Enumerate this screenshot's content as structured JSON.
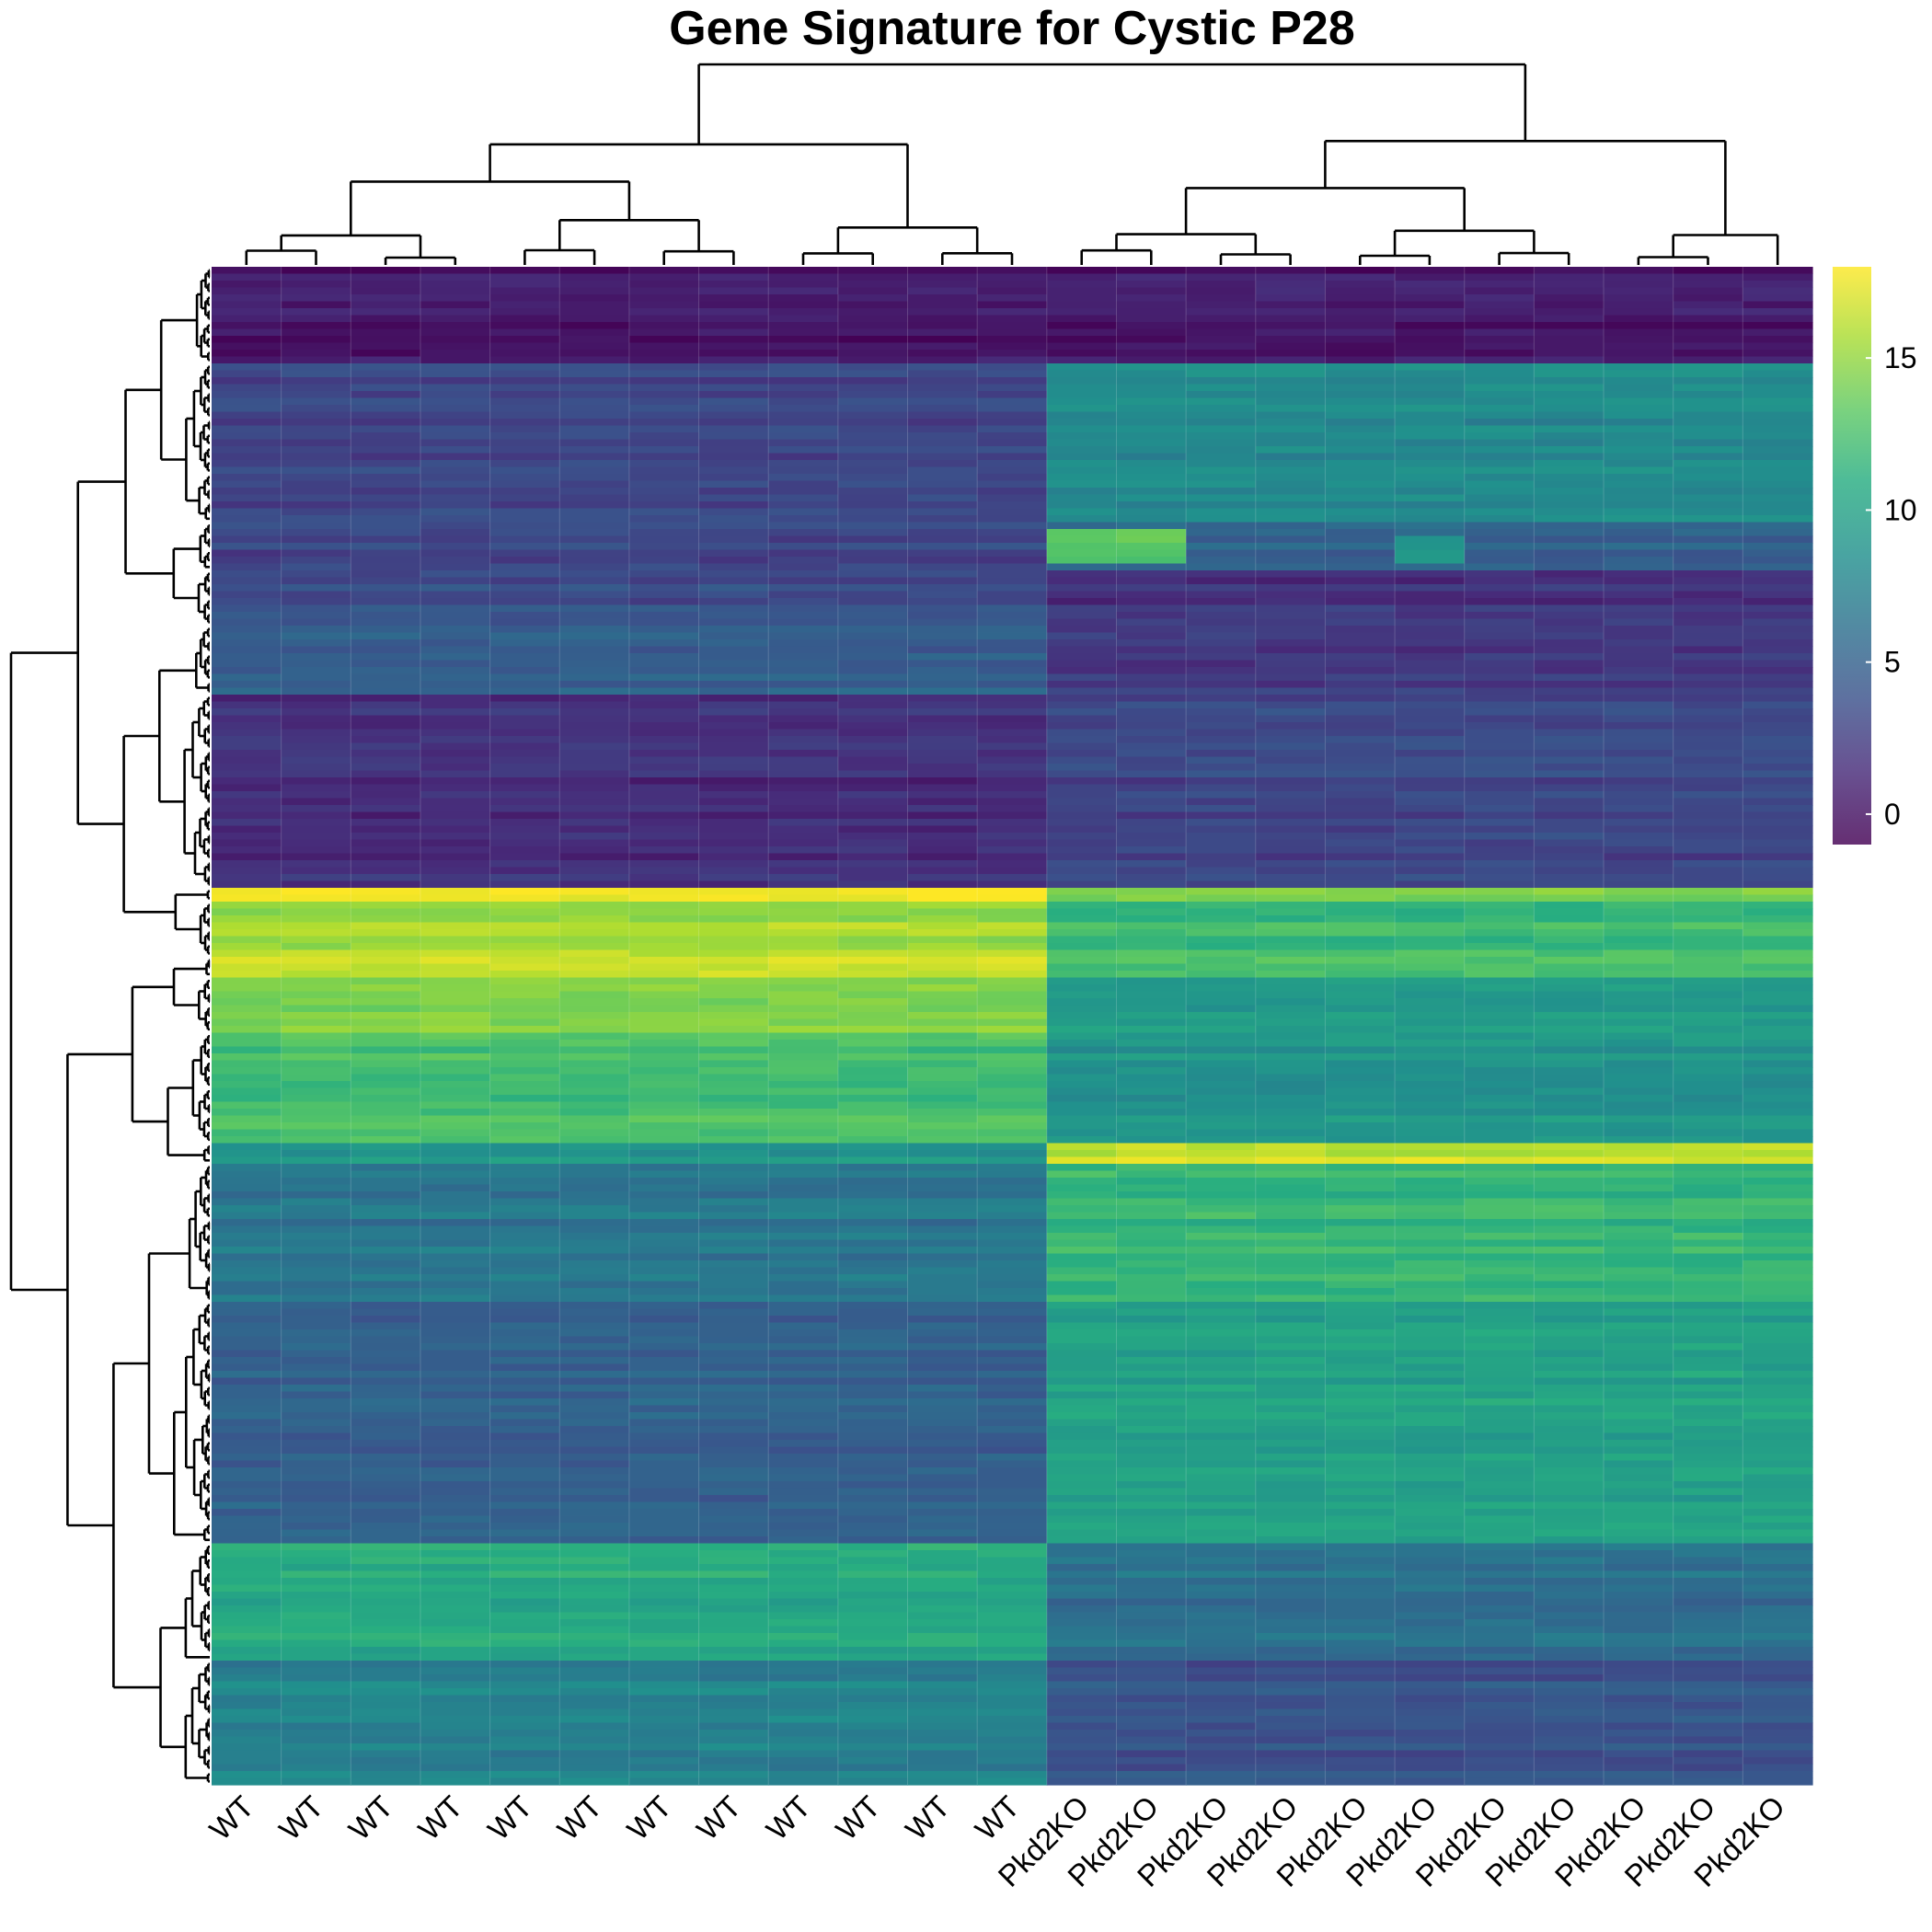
{
  "chart_data": {
    "type": "heatmap",
    "title": "Gene Signature for Cystic P28",
    "columns": [
      "WT",
      "WT",
      "WT",
      "WT",
      "WT",
      "WT",
      "WT",
      "WT",
      "WT",
      "WT",
      "WT",
      "WT",
      "Pkd2KO",
      "Pkd2KO",
      "Pkd2KO",
      "Pkd2KO",
      "Pkd2KO",
      "Pkd2KO",
      "Pkd2KO",
      "Pkd2KO",
      "Pkd2KO",
      "Pkd2KO",
      "Pkd2KO"
    ],
    "row_count": 220,
    "row_dendrogram": true,
    "column_dendrogram": true,
    "colormap": "viridis",
    "colorbar": {
      "min": -1,
      "max": 18,
      "ticks": [
        0,
        5,
        10,
        15
      ]
    },
    "row_blocks": [
      {
        "rows": 14,
        "WT": 0.2,
        "Pkd2KO": 0.3
      },
      {
        "rows": 23,
        "WT": 3.0,
        "Pkd2KO": 8.0
      },
      {
        "rows": 7,
        "WT": 3.0,
        "Pkd2KO": 5.0
      },
      {
        "rows": 8,
        "WT": 3.5,
        "Pkd2KO": 1.8
      },
      {
        "rows": 10,
        "WT": 5.0,
        "Pkd2KO": 2.5
      },
      {
        "rows": 28,
        "WT": 1.5,
        "Pkd2KO": 3.0
      },
      {
        "rows": 2,
        "WT": 17.5,
        "Pkd2KO": 14.0
      },
      {
        "rows": 8,
        "WT": 15.5,
        "Pkd2KO": 12.0
      },
      {
        "rows": 3,
        "WT": 17.0,
        "Pkd2KO": 13.0
      },
      {
        "rows": 8,
        "WT": 14.5,
        "Pkd2KO": 9.5
      },
      {
        "rows": 16,
        "WT": 12.5,
        "Pkd2KO": 9.0
      },
      {
        "rows": 3,
        "WT": 9.0,
        "Pkd2KO": 16.5
      },
      {
        "rows": 20,
        "WT": 6.5,
        "Pkd2KO": 11.5
      },
      {
        "rows": 35,
        "WT": 5.0,
        "Pkd2KO": 10.0
      },
      {
        "rows": 17,
        "WT": 10.5,
        "Pkd2KO": 6.0
      },
      {
        "rows": 18,
        "WT": 7.5,
        "Pkd2KO": 4.0
      }
    ],
    "highlights": [
      {
        "rows": [
          38,
          39
        ],
        "cols": [
          12,
          13
        ],
        "value": 13.5
      },
      {
        "rows": [
          40,
          42
        ],
        "cols": [
          12,
          13
        ],
        "value": 12.5
      },
      {
        "rows": [
          39,
          42
        ],
        "cols": [
          17
        ],
        "value": 9.0
      }
    ]
  }
}
